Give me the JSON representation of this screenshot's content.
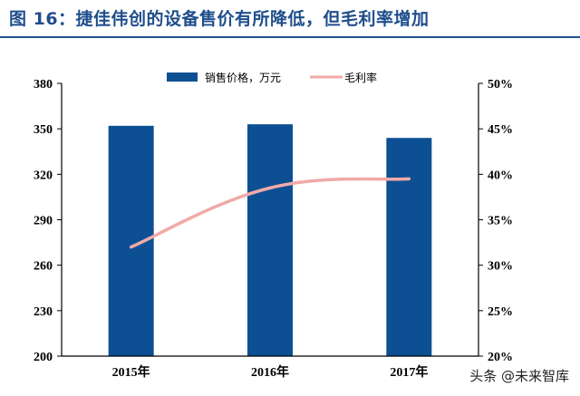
{
  "title": "图 16：捷佳伟创的设备售价有所降低，但毛利率增加",
  "watermark": "头条 @未来智库",
  "colors": {
    "bar": "#0d4f93",
    "line": "#f0aaa8",
    "title": "#1f4e8c",
    "rule": "#1f4e8c"
  },
  "chart_data": {
    "type": "bar+line",
    "categories": [
      "2015年",
      "2016年",
      "2017年"
    ],
    "series": [
      {
        "name": "销售价格，万元",
        "type": "bar",
        "axis": "left",
        "values": [
          352,
          353,
          344
        ]
      },
      {
        "name": "毛利率",
        "type": "line",
        "axis": "right",
        "values": [
          32.0,
          38.5,
          39.5
        ]
      }
    ],
    "y_left": {
      "ylim": [
        200,
        380
      ],
      "ticks": [
        "200",
        "230",
        "260",
        "290",
        "320",
        "350",
        "380"
      ]
    },
    "y_right": {
      "ylim": [
        20,
        50
      ],
      "ticks": [
        "20%",
        "25%",
        "30%",
        "35%",
        "40%",
        "45%",
        "50%"
      ]
    },
    "legend_position": "top-center",
    "grid": false
  }
}
